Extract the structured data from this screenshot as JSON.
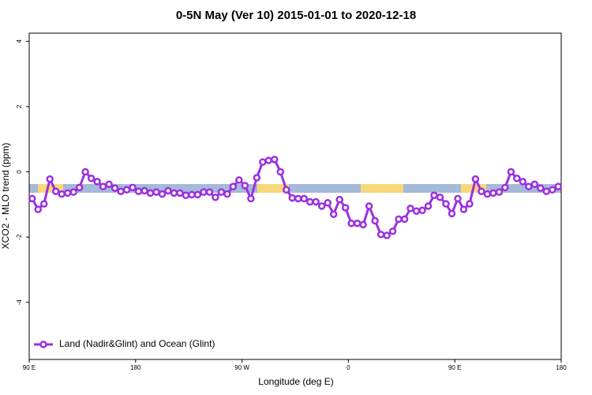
{
  "chart_data": {
    "type": "line",
    "title": "0-5N May (Ver 10)   2015-01-01 to 2020-12-18",
    "x_label": "Longitude (deg E)",
    "y_label": "XCO2 - MLO trend (ppm)",
    "xlim": [
      90,
      540
    ],
    "ylim": [
      -5.75,
      4.25
    ],
    "xticks": [
      {
        "value": 90,
        "label": "90 E"
      },
      180,
      {
        "value": 270,
        "label": "90 W"
      },
      {
        "value": 360,
        "label": "0"
      },
      {
        "value": 450,
        "label": "90 E"
      },
      {
        "value": 540,
        "label": "180"
      }
    ],
    "yticks": [
      4,
      2,
      0,
      -2,
      -4
    ],
    "legend": "bottom-left",
    "x": [
      92.5,
      97.5,
      102.5,
      107.5,
      112.5,
      117.5,
      122.5,
      127.5,
      132.5,
      137.5,
      142.5,
      147.5,
      152.5,
      157.5,
      162.5,
      167.5,
      172.5,
      177.5,
      182.5,
      187.5,
      192.5,
      197.5,
      202.5,
      207.5,
      212.5,
      217.5,
      222.5,
      227.5,
      232.5,
      237.5,
      242.5,
      247.5,
      252.5,
      257.5,
      262.5,
      267.5,
      272.5,
      277.5,
      282.5,
      287.5,
      292.5,
      297.5,
      302.5,
      307.5,
      312.5,
      317.5,
      322.5,
      327.5,
      332.5,
      337.5,
      342.5,
      347.5,
      352.5,
      357.5,
      362.5,
      367.5,
      372.5,
      377.5,
      382.5,
      387.5,
      392.5,
      397.5,
      402.5,
      407.5,
      412.5,
      417.5,
      422.5,
      427.5,
      432.5,
      437.5,
      442.5,
      447.5,
      452.5,
      457.5,
      462.5,
      467.5,
      472.5,
      477.5,
      482.5,
      487.5,
      492.5,
      497.5,
      502.5,
      507.5,
      512.5,
      517.5,
      522.5,
      527.5,
      532.5,
      537.5
    ],
    "series": [
      {
        "name": "Land (Nadir&Glint) and Ocean (Glint)",
        "color": "#9b30e0",
        "values": [
          -0.82,
          -1.15,
          -0.98,
          -0.22,
          -0.6,
          -0.68,
          -0.65,
          -0.62,
          -0.48,
          0,
          -0.2,
          -0.3,
          -0.45,
          -0.38,
          -0.5,
          -0.6,
          -0.55,
          -0.48,
          -0.6,
          -0.58,
          -0.65,
          -0.62,
          -0.68,
          -0.58,
          -0.65,
          -0.65,
          -0.72,
          -0.7,
          -0.7,
          -0.62,
          -0.62,
          -0.78,
          -0.62,
          -0.68,
          -0.45,
          -0.25,
          -0.42,
          -0.82,
          -0.18,
          0.3,
          0.35,
          0.38,
          0,
          -0.55,
          -0.8,
          -0.82,
          -0.82,
          -0.92,
          -0.92,
          -1.05,
          -0.95,
          -1.3,
          -0.85,
          -1.1,
          -1.58,
          -1.58,
          -1.62,
          -1.05,
          -1.5,
          -1.92,
          -1.95,
          -1.82,
          -1.45,
          -1.45,
          -1.12,
          -1.2,
          -1.18,
          -1.05,
          -0.72,
          -0.78,
          -0.98,
          -1.28,
          -0.82,
          -1.15,
          -0.98,
          -0.22,
          -0.6,
          -0.68,
          -0.65,
          -0.62,
          -0.48,
          0,
          -0.2,
          -0.3,
          -0.45,
          -0.38,
          -0.5,
          -0.6,
          -0.55,
          -0.45
        ]
      }
    ]
  }
}
